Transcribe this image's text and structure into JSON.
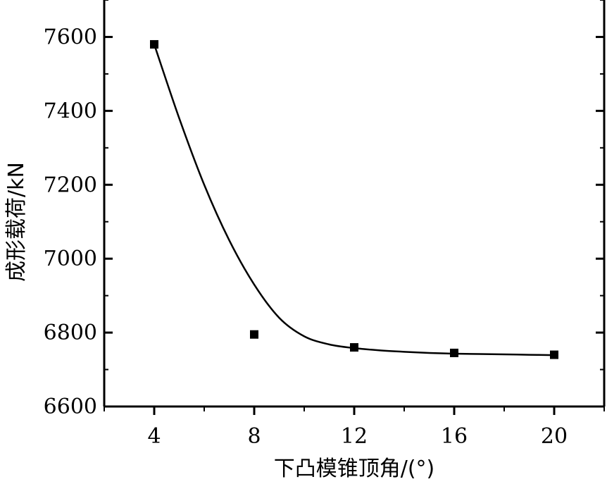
{
  "chart_data": {
    "type": "scatter",
    "title": "",
    "xlabel": "下凸模锥顶角/(°)",
    "ylabel": "成形载荷/kN",
    "xlim": [
      2,
      22
    ],
    "ylim": [
      6600,
      7700
    ],
    "x_ticks": [
      "4",
      "8",
      "12",
      "16",
      "20"
    ],
    "y_ticks": [
      "6600",
      "6800",
      "7000",
      "7200",
      "7400",
      "7600"
    ],
    "grid": false,
    "legend": "none",
    "series": [
      {
        "marker": "square",
        "x": [
          4,
          8,
          12,
          16,
          20
        ],
        "y": [
          7580,
          6795,
          6760,
          6745,
          6740
        ]
      }
    ],
    "fit_curve": {
      "x": [
        4,
        5,
        6,
        7,
        8,
        9,
        10,
        11,
        12,
        13,
        14,
        15,
        16,
        17,
        18,
        19,
        20
      ],
      "y": [
        7580,
        7380,
        7200,
        7050,
        6930,
        6840,
        6790,
        6768,
        6758,
        6752,
        6748,
        6745,
        6743,
        6742,
        6741,
        6740,
        6739
      ]
    }
  }
}
